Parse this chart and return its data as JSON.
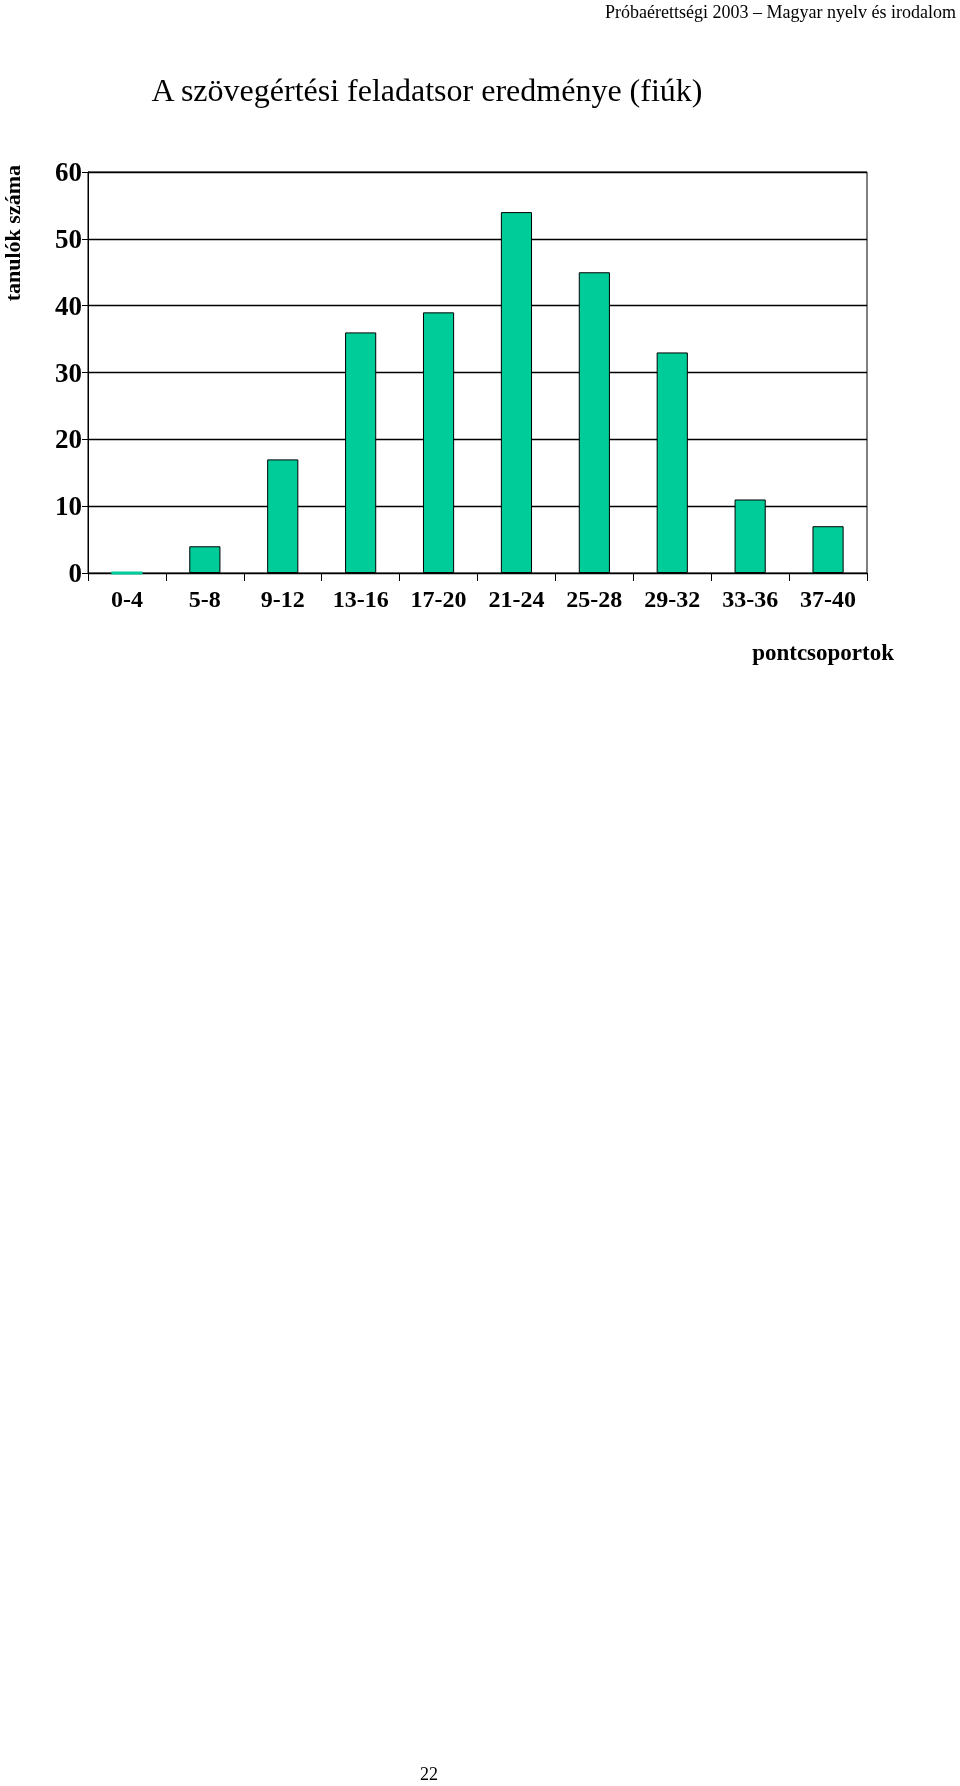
{
  "chart_data": {
    "type": "bar",
    "title": "A szövegértési feladatsor eredménye (fiúk)",
    "xlabel": "pontcsoportok",
    "ylabel": "tanulók száma",
    "annotations": [
      "Próbaérettségi 2003 – Magyar nyelv és irodalom",
      "22"
    ],
    "categories": [
      "0-4",
      "5-8",
      "9-12",
      "13-16",
      "17-20",
      "21-24",
      "25-28",
      "29-32",
      "33-36",
      "37-40"
    ],
    "values": [
      0,
      4,
      17,
      36,
      39,
      54,
      45,
      33,
      11,
      7
    ],
    "color": "#00cc99",
    "ylim": [
      0,
      60
    ],
    "yticks": [
      0,
      10,
      20,
      30,
      40,
      50,
      60
    ],
    "grid": "y"
  }
}
